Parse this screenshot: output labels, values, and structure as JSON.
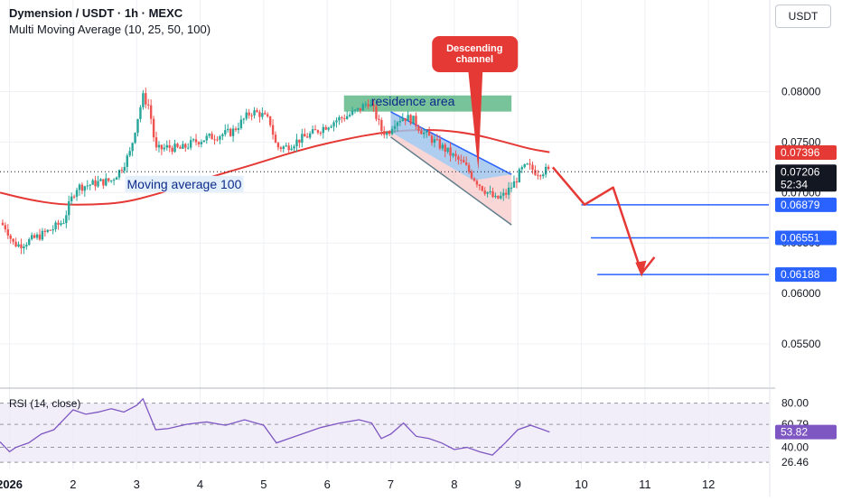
{
  "header": {
    "title": "Dymension / USDT · 1h · MEXC",
    "indicator": "Multi Moving Average (10, 25, 50, 100)",
    "currency_button": "USDT"
  },
  "rsi_pane": {
    "label": "RSI (14, close)"
  },
  "colors": {
    "up": "#26a69a",
    "down": "#ef5350",
    "ma": "#e53935",
    "blue_line": "#2962ff",
    "annotation_red": "#e53935",
    "residence_zone": "#4caf7a",
    "channel_fill": "#90caf9"
  },
  "annotations": {
    "callout": "Descending channel",
    "residence_area": "residence area",
    "ma_label": "Moving average 100"
  },
  "price_badges": {
    "ma_value": "0.07396",
    "last_price": "0.07206",
    "countdown": "52:34",
    "target_1": "0.06879",
    "target_2": "0.06551",
    "target_3": "0.06188"
  },
  "rsi_badges": {
    "current": "53.82",
    "level": "60.79"
  },
  "chart_data": {
    "type": "line",
    "title": "Dymension / USDT · 1h · MEXC",
    "xlabel": "",
    "ylabel": "",
    "x_ticks": [
      "2026",
      "2",
      "3",
      "4",
      "5",
      "6",
      "7",
      "8",
      "9",
      "10",
      "11",
      "12"
    ],
    "x_tick_days": [
      1,
      2,
      3,
      4,
      5,
      6,
      7,
      8,
      9,
      10,
      11,
      12
    ],
    "xlim": [
      0.85,
      12.95
    ],
    "ylim": [
      0.0508,
      0.0855
    ],
    "y_ticks": [
      "0.08000",
      "0.07500",
      "0.07000",
      "0.06500",
      "0.06000",
      "0.05500"
    ],
    "y_tick_values": [
      0.08,
      0.075,
      0.07,
      0.065,
      0.06,
      0.055
    ],
    "grid": true,
    "price_path": [
      [
        0.85,
        0.067
      ],
      [
        0.95,
        0.0665
      ],
      [
        1.05,
        0.065
      ],
      [
        1.15,
        0.0648
      ],
      [
        1.3,
        0.0652
      ],
      [
        1.5,
        0.0658
      ],
      [
        1.7,
        0.0665
      ],
      [
        1.85,
        0.0672
      ],
      [
        1.95,
        0.069
      ],
      [
        2.05,
        0.0705
      ],
      [
        2.2,
        0.0707
      ],
      [
        2.4,
        0.071
      ],
      [
        2.6,
        0.0712
      ],
      [
        2.75,
        0.0723
      ],
      [
        2.9,
        0.074
      ],
      [
        3.0,
        0.077
      ],
      [
        3.1,
        0.0795
      ],
      [
        3.2,
        0.0785
      ],
      [
        3.3,
        0.0742
      ],
      [
        3.5,
        0.0745
      ],
      [
        3.7,
        0.0743
      ],
      [
        3.9,
        0.075
      ],
      [
        4.1,
        0.0754
      ],
      [
        4.3,
        0.0757
      ],
      [
        4.5,
        0.076
      ],
      [
        4.65,
        0.077
      ],
      [
        4.8,
        0.078
      ],
      [
        4.95,
        0.0778
      ],
      [
        5.1,
        0.077
      ],
      [
        5.2,
        0.0745
      ],
      [
        5.35,
        0.0745
      ],
      [
        5.55,
        0.0752
      ],
      [
        5.75,
        0.0758
      ],
      [
        5.95,
        0.0765
      ],
      [
        6.15,
        0.0772
      ],
      [
        6.35,
        0.0777
      ],
      [
        6.5,
        0.0782
      ],
      [
        6.65,
        0.079
      ],
      [
        6.75,
        0.0779
      ],
      [
        6.85,
        0.0762
      ],
      [
        6.95,
        0.0758
      ],
      [
        7.05,
        0.077
      ],
      [
        7.2,
        0.0775
      ],
      [
        7.35,
        0.0772
      ],
      [
        7.5,
        0.076
      ],
      [
        7.7,
        0.075
      ],
      [
        7.85,
        0.0743
      ],
      [
        8.0,
        0.0735
      ],
      [
        8.15,
        0.0728
      ],
      [
        8.3,
        0.0715
      ],
      [
        8.45,
        0.0704
      ],
      [
        8.55,
        0.0699
      ],
      [
        8.65,
        0.0693
      ],
      [
        8.8,
        0.0698
      ],
      [
        8.95,
        0.071
      ],
      [
        9.05,
        0.0722
      ],
      [
        9.15,
        0.0726
      ],
      [
        9.3,
        0.072
      ],
      [
        9.45,
        0.0722
      ],
      [
        9.5,
        0.07206
      ]
    ],
    "ma100_path": [
      [
        0.85,
        0.07
      ],
      [
        1.3,
        0.0693
      ],
      [
        1.8,
        0.0688
      ],
      [
        2.3,
        0.0688
      ],
      [
        2.8,
        0.069
      ],
      [
        3.3,
        0.0698
      ],
      [
        3.8,
        0.0708
      ],
      [
        4.3,
        0.0718
      ],
      [
        4.8,
        0.0727
      ],
      [
        5.3,
        0.0737
      ],
      [
        5.8,
        0.0746
      ],
      [
        6.3,
        0.0753
      ],
      [
        6.8,
        0.0759
      ],
      [
        7.3,
        0.0762
      ],
      [
        7.8,
        0.0762
      ],
      [
        8.3,
        0.0758
      ],
      [
        8.8,
        0.075
      ],
      [
        9.2,
        0.0743
      ],
      [
        9.5,
        0.074
      ]
    ],
    "projection_path": [
      [
        9.55,
        0.0725
      ],
      [
        10.05,
        0.0688
      ],
      [
        10.5,
        0.0705
      ],
      [
        10.95,
        0.062
      ],
      [
        11.15,
        0.0636
      ]
    ],
    "target_levels": [
      {
        "value": 0.06879,
        "x_start": 10.0
      },
      {
        "value": 0.06551,
        "x_start": 10.15
      },
      {
        "value": 0.06188,
        "x_start": 10.25
      }
    ],
    "residence_zone": {
      "x_start": 6.15,
      "x_end": 8.9,
      "y_low": 0.0782,
      "y_high": 0.0798
    },
    "descending_channel": {
      "upper": [
        [
          7.0,
          0.078
        ],
        [
          8.9,
          0.0718
        ]
      ],
      "lower": [
        [
          7.0,
          0.0755
        ],
        [
          8.9,
          0.0668
        ]
      ]
    },
    "rsi": {
      "ylim": [
        20,
        92
      ],
      "levels": [
        80,
        60.79,
        40,
        26.46
      ],
      "y_ticks": [
        "80.00",
        "60.79",
        "53.82",
        "40.00",
        "26.46"
      ],
      "current": 53.82,
      "series": [
        [
          0.85,
          45
        ],
        [
          1.0,
          36
        ],
        [
          1.1,
          40
        ],
        [
          1.3,
          44
        ],
        [
          1.5,
          52
        ],
        [
          1.7,
          56
        ],
        [
          1.9,
          68
        ],
        [
          2.0,
          74
        ],
        [
          2.2,
          70
        ],
        [
          2.4,
          72
        ],
        [
          2.6,
          75
        ],
        [
          2.8,
          72
        ],
        [
          3.0,
          78
        ],
        [
          3.1,
          84
        ],
        [
          3.2,
          70
        ],
        [
          3.3,
          56
        ],
        [
          3.5,
          57
        ],
        [
          3.8,
          61
        ],
        [
          4.1,
          63
        ],
        [
          4.4,
          60
        ],
        [
          4.7,
          65
        ],
        [
          5.0,
          60
        ],
        [
          5.2,
          44
        ],
        [
          5.4,
          48
        ],
        [
          5.6,
          52
        ],
        [
          5.9,
          58
        ],
        [
          6.2,
          62
        ],
        [
          6.5,
          65
        ],
        [
          6.7,
          62
        ],
        [
          6.85,
          48
        ],
        [
          7.0,
          52
        ],
        [
          7.2,
          62
        ],
        [
          7.4,
          50
        ],
        [
          7.6,
          48
        ],
        [
          7.8,
          44
        ],
        [
          8.0,
          38
        ],
        [
          8.2,
          40
        ],
        [
          8.4,
          36
        ],
        [
          8.6,
          33
        ],
        [
          8.8,
          44
        ],
        [
          9.0,
          56
        ],
        [
          9.2,
          60
        ],
        [
          9.35,
          57
        ],
        [
          9.5,
          53.82
        ]
      ]
    }
  }
}
